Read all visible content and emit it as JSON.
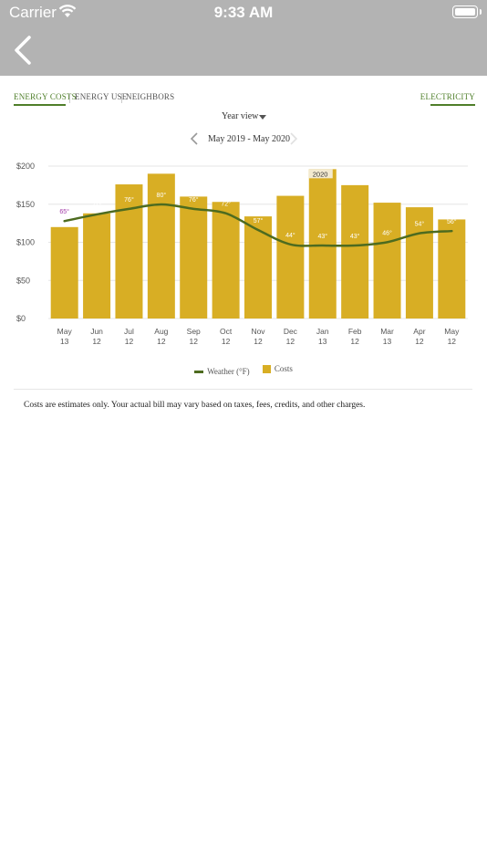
{
  "status_bar": {
    "carrier": "Carrier",
    "time": "9:33 AM"
  },
  "tabs": [
    {
      "label": "ENERGY COSTS",
      "active": true
    },
    {
      "label": "ENERGY USE",
      "active": false
    },
    {
      "label": "NEIGHBORS",
      "active": false
    }
  ],
  "fuel_tab": {
    "label": "ELECTRICITY"
  },
  "view_selector": {
    "label": "Year view"
  },
  "period": {
    "label": "May 2019 - May 2020"
  },
  "colors": {
    "bar": "#d8ae24",
    "weather_line": "#4d6b1f",
    "accent": "#4f7f2a",
    "nav": "#b3b3b3"
  },
  "chart_data": {
    "type": "bar",
    "categories": [
      [
        "May",
        "13"
      ],
      [
        "Jun",
        "12"
      ],
      [
        "Jul",
        "12"
      ],
      [
        "Aug",
        "12"
      ],
      [
        "Sep",
        "12"
      ],
      [
        "Oct",
        "12"
      ],
      [
        "Nov",
        "12"
      ],
      [
        "Dec",
        "12"
      ],
      [
        "Jan",
        "13"
      ],
      [
        "Feb",
        "12"
      ],
      [
        "Mar",
        "13"
      ],
      [
        "Apr",
        "12"
      ],
      [
        "May",
        "12"
      ]
    ],
    "series": [
      {
        "name": "Costs",
        "values": [
          120,
          138,
          176,
          190,
          160,
          153,
          134,
          161,
          196,
          175,
          152,
          146,
          130
        ]
      },
      {
        "name": "Weather (°F)",
        "values": [
          65,
          71,
          76,
          80,
          76,
          72,
          57,
          44,
          43,
          43,
          46,
          54,
          56
        ],
        "labels": [
          "65°",
          "71°",
          "76°",
          "80°",
          "76°",
          "72°",
          "57°",
          "44°",
          "43°",
          "43°",
          "46°",
          "54°",
          "56°"
        ]
      }
    ],
    "y_ticks": [
      "$200",
      "$150",
      "$100",
      "$50",
      "$0"
    ],
    "ylim": [
      0,
      200
    ],
    "annotations": [
      {
        "label": "2020",
        "category_index": 8
      }
    ],
    "legend": {
      "placement": "bottom"
    },
    "grid": true
  },
  "disclaimer": "Costs are estimates only. Your actual bill may vary based on taxes, fees, credits, and other charges."
}
